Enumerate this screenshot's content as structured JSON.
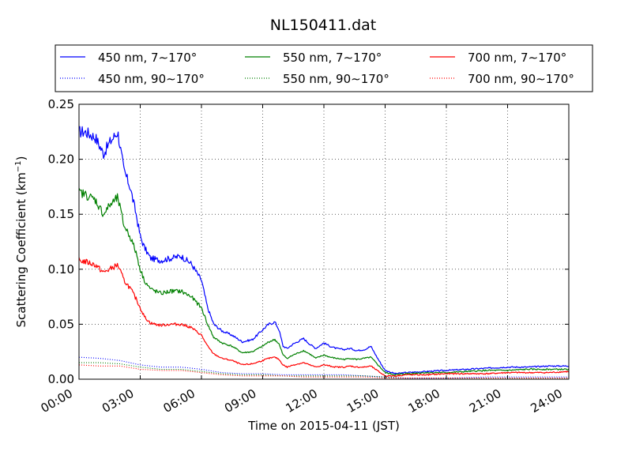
{
  "chart_data": {
    "type": "line",
    "title": "NL150411.dat",
    "xlabel": "Time on 2015-04-11 (JST)",
    "ylabel": "Scattering Coefficient (km",
    "ylabel_sup": "−1",
    "ylabel_end": ")",
    "xlim": [
      0,
      24
    ],
    "ylim": [
      0,
      0.25
    ],
    "x_ticks": [
      0,
      3,
      6,
      9,
      12,
      15,
      18,
      21,
      24
    ],
    "x_tick_labels": [
      "00:00",
      "03:00",
      "06:00",
      "09:00",
      "12:00",
      "15:00",
      "18:00",
      "21:00",
      "24:00"
    ],
    "y_ticks": [
      0,
      0.05,
      0.1,
      0.15,
      0.2,
      0.25
    ],
    "y_tick_labels": [
      "0.00",
      "0.05",
      "0.10",
      "0.15",
      "0.20",
      "0.25"
    ],
    "grid": true,
    "legend_placement": "top-center",
    "x_unit": "hours",
    "series": [
      {
        "name": "450 nm, 7∼170°",
        "color": "#0000ff",
        "style": "solid",
        "x": [
          0,
          0.3,
          0.8,
          1.2,
          1.5,
          1.9,
          2.2,
          2.5,
          2.8,
          3.0,
          3.2,
          3.5,
          4.0,
          4.5,
          5.0,
          5.5,
          6.0,
          6.3,
          6.6,
          7.0,
          7.5,
          8.0,
          8.5,
          9.0,
          9.3,
          9.6,
          9.8,
          10.0,
          10.2,
          10.5,
          11.0,
          11.3,
          11.6,
          12.0,
          12.3,
          12.6,
          13.0,
          13.3,
          13.6,
          14.0,
          14.3,
          14.6,
          15.0,
          15.5,
          16.0,
          17.0,
          18.0,
          19.0,
          20.0,
          21.0,
          22.0,
          23.0,
          24.0
        ],
        "values": [
          0.225,
          0.225,
          0.22,
          0.205,
          0.215,
          0.225,
          0.19,
          0.175,
          0.15,
          0.13,
          0.12,
          0.11,
          0.108,
          0.11,
          0.112,
          0.105,
          0.09,
          0.065,
          0.05,
          0.044,
          0.04,
          0.034,
          0.036,
          0.045,
          0.05,
          0.052,
          0.045,
          0.03,
          0.028,
          0.032,
          0.037,
          0.032,
          0.028,
          0.033,
          0.03,
          0.028,
          0.027,
          0.028,
          0.026,
          0.027,
          0.03,
          0.02,
          0.008,
          0.005,
          0.006,
          0.007,
          0.008,
          0.009,
          0.01,
          0.011,
          0.011,
          0.012,
          0.012
        ]
      },
      {
        "name": "450 nm, 90∼170°",
        "color": "#0000ff",
        "style": "dotted",
        "x": [
          0,
          1,
          2,
          3,
          4,
          5,
          6,
          7,
          8,
          9,
          10,
          11,
          12,
          13,
          14,
          15,
          16,
          18,
          20,
          22,
          24
        ],
        "values": [
          0.02,
          0.019,
          0.017,
          0.013,
          0.011,
          0.011,
          0.009,
          0.006,
          0.005,
          0.005,
          0.004,
          0.004,
          0.004,
          0.004,
          0.003,
          0.002,
          0.001,
          0.001,
          0.002,
          0.002,
          0.002
        ]
      },
      {
        "name": "550 nm, 7∼170°",
        "color": "#008000",
        "style": "solid",
        "x": [
          0,
          0.3,
          0.8,
          1.2,
          1.5,
          1.9,
          2.2,
          2.5,
          2.8,
          3.0,
          3.2,
          3.5,
          4.0,
          4.5,
          5.0,
          5.5,
          6.0,
          6.3,
          6.6,
          7.0,
          7.5,
          8.0,
          8.5,
          9.0,
          9.3,
          9.6,
          9.8,
          10.0,
          10.2,
          10.5,
          11.0,
          11.3,
          11.6,
          12.0,
          12.3,
          12.6,
          13.0,
          13.3,
          13.6,
          14.0,
          14.3,
          14.6,
          15.0,
          15.5,
          16.0,
          17.0,
          18.0,
          19.0,
          20.0,
          21.0,
          22.0,
          23.0,
          24.0
        ],
        "values": [
          0.17,
          0.168,
          0.163,
          0.15,
          0.158,
          0.165,
          0.14,
          0.13,
          0.115,
          0.1,
          0.09,
          0.082,
          0.078,
          0.08,
          0.08,
          0.075,
          0.065,
          0.05,
          0.038,
          0.033,
          0.03,
          0.024,
          0.025,
          0.03,
          0.034,
          0.036,
          0.032,
          0.022,
          0.019,
          0.022,
          0.026,
          0.023,
          0.019,
          0.022,
          0.02,
          0.019,
          0.018,
          0.019,
          0.018,
          0.019,
          0.02,
          0.014,
          0.006,
          0.004,
          0.005,
          0.006,
          0.006,
          0.007,
          0.008,
          0.008,
          0.009,
          0.009,
          0.009
        ]
      },
      {
        "name": "550 nm, 90∼170°",
        "color": "#008000",
        "style": "dotted",
        "x": [
          0,
          1,
          2,
          3,
          4,
          5,
          6,
          7,
          8,
          9,
          10,
          11,
          12,
          13,
          14,
          15,
          16,
          18,
          20,
          22,
          24
        ],
        "values": [
          0.015,
          0.015,
          0.014,
          0.011,
          0.009,
          0.009,
          0.007,
          0.005,
          0.004,
          0.004,
          0.003,
          0.003,
          0.003,
          0.003,
          0.003,
          0.002,
          0.001,
          0.001,
          0.001,
          0.001,
          0.001
        ]
      },
      {
        "name": "700 nm, 7∼170°",
        "color": "#ff0000",
        "style": "solid",
        "x": [
          0,
          0.3,
          0.8,
          1.2,
          1.5,
          1.9,
          2.2,
          2.5,
          2.8,
          3.0,
          3.2,
          3.5,
          4.0,
          4.5,
          5.0,
          5.5,
          6.0,
          6.3,
          6.6,
          7.0,
          7.5,
          8.0,
          8.5,
          9.0,
          9.3,
          9.6,
          9.8,
          10.0,
          10.2,
          10.5,
          11.0,
          11.3,
          11.6,
          12.0,
          12.3,
          12.6,
          13.0,
          13.3,
          13.6,
          14.0,
          14.3,
          14.6,
          15.0,
          15.5,
          16.0,
          17.0,
          18.0,
          19.0,
          20.0,
          21.0,
          22.0,
          23.0,
          24.0
        ],
        "values": [
          0.108,
          0.107,
          0.104,
          0.097,
          0.1,
          0.104,
          0.09,
          0.083,
          0.073,
          0.065,
          0.057,
          0.051,
          0.049,
          0.05,
          0.05,
          0.047,
          0.04,
          0.03,
          0.023,
          0.019,
          0.017,
          0.013,
          0.014,
          0.017,
          0.019,
          0.02,
          0.018,
          0.013,
          0.011,
          0.013,
          0.015,
          0.013,
          0.011,
          0.013,
          0.012,
          0.011,
          0.011,
          0.012,
          0.011,
          0.011,
          0.012,
          0.008,
          0.003,
          0.003,
          0.004,
          0.004,
          0.005,
          0.005,
          0.005,
          0.006,
          0.006,
          0.006,
          0.007
        ]
      },
      {
        "name": "700 nm, 90∼170°",
        "color": "#ff0000",
        "style": "dotted",
        "x": [
          0,
          1,
          2,
          3,
          4,
          5,
          6,
          7,
          8,
          9,
          10,
          11,
          12,
          13,
          14,
          15,
          16,
          18,
          20,
          22,
          24
        ],
        "values": [
          0.013,
          0.012,
          0.012,
          0.009,
          0.008,
          0.008,
          0.006,
          0.004,
          0.003,
          0.003,
          0.003,
          0.002,
          0.002,
          0.002,
          0.002,
          0.001,
          0.001,
          0.001,
          0.001,
          0.001,
          0.001
        ]
      }
    ]
  }
}
